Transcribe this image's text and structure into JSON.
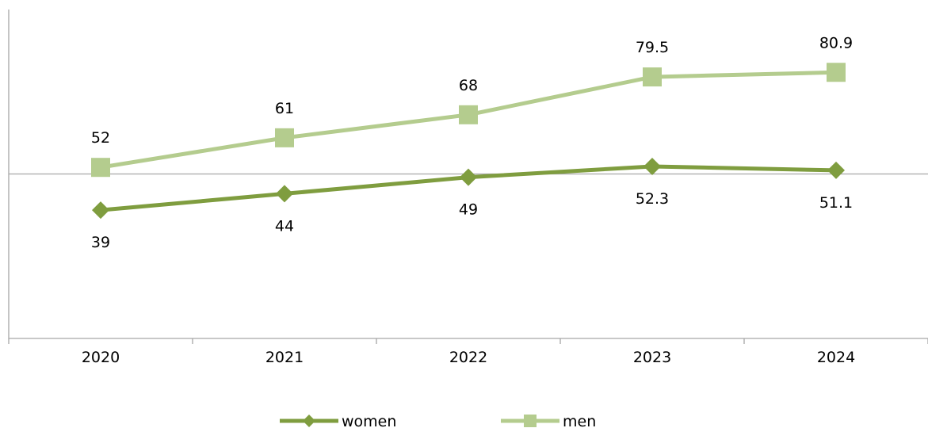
{
  "chart_data": {
    "type": "line",
    "title": "",
    "xlabel": "",
    "ylabel": "",
    "categories": [
      "2020",
      "2021",
      "2022",
      "2023",
      "2024"
    ],
    "ylim": [
      0,
      100
    ],
    "grid": false,
    "legend_position": "bottom",
    "series": [
      {
        "name": "women",
        "values": [
          39,
          44,
          49,
          52.3,
          51.1
        ],
        "labels": [
          "39",
          "44",
          "49",
          "52.3",
          "51.1"
        ],
        "color": "#7f9d3f",
        "marker": "diamond",
        "label_position": "below"
      },
      {
        "name": "men",
        "values": [
          52,
          61,
          68,
          79.5,
          80.9
        ],
        "labels": [
          "52",
          "61",
          "68",
          "79.5",
          "80.9"
        ],
        "color": "#b4cc8e",
        "marker": "square",
        "label_position": "above"
      }
    ]
  },
  "colors": {
    "axis": "#a6a6a6",
    "women": "#7f9d3f",
    "men": "#b4cc8e"
  }
}
